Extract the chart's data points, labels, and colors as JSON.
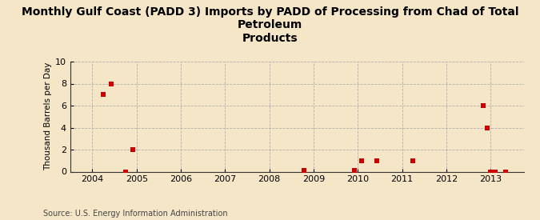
{
  "title": "Monthly Gulf Coast (PADD 3) Imports by PADD of Processing from Chad of Total Petroleum\nProducts",
  "ylabel": "Thousand Barrels per Day",
  "source": "Source: U.S. Energy Information Administration",
  "background_color": "#f5e6c8",
  "plot_background_color": "#f5e6c8",
  "xlim": [
    2003.5,
    2013.75
  ],
  "ylim": [
    0,
    10
  ],
  "yticks": [
    0,
    2,
    4,
    6,
    8,
    10
  ],
  "xticks": [
    2004,
    2005,
    2006,
    2007,
    2008,
    2009,
    2010,
    2011,
    2012,
    2013
  ],
  "marker_color": "#cc0000",
  "marker": "s",
  "marker_size": 4.5,
  "data_x": [
    2004.25,
    2004.42,
    2004.75,
    2004.92,
    2008.78,
    2009.92,
    2010.08,
    2010.42,
    2011.25,
    2012.83,
    2012.92,
    2013.0,
    2013.1,
    2013.33
  ],
  "data_y": [
    7,
    8,
    0,
    2,
    0.08,
    0.08,
    1,
    1,
    1,
    6,
    4,
    0,
    0,
    0
  ],
  "title_fontsize": 10,
  "ylabel_fontsize": 7.5,
  "tick_fontsize": 8,
  "source_fontsize": 7
}
